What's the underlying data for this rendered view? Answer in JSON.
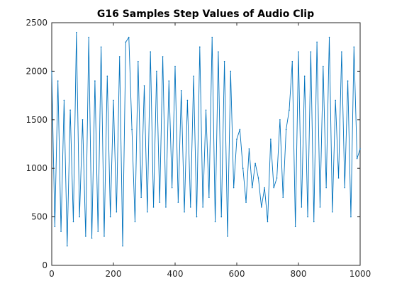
{
  "chart_data": {
    "type": "line",
    "title": "G16 Samples Step Values of Audio Clip",
    "xlabel": "",
    "ylabel": "",
    "xlim": [
      0,
      1000
    ],
    "ylim": [
      0,
      2500
    ],
    "x_ticks": [
      0,
      200,
      400,
      600,
      800,
      1000
    ],
    "y_ticks": [
      0,
      500,
      1000,
      1500,
      2000,
      2500
    ],
    "x_tick_labels": [
      "0",
      "200",
      "400",
      "600",
      "800",
      "1000"
    ],
    "y_tick_labels": [
      "0",
      "500",
      "1000",
      "1500",
      "2000",
      "2500"
    ],
    "grid": false,
    "legend": "none",
    "series": [
      {
        "color": "#0072BD",
        "x": [
          0,
          10,
          20,
          30,
          40,
          50,
          60,
          70,
          80,
          90,
          100,
          110,
          120,
          130,
          140,
          150,
          160,
          170,
          180,
          190,
          200,
          210,
          220,
          230,
          240,
          250,
          260,
          270,
          280,
          290,
          300,
          310,
          320,
          330,
          340,
          350,
          360,
          370,
          380,
          390,
          400,
          410,
          420,
          430,
          440,
          450,
          460,
          470,
          480,
          490,
          500,
          510,
          520,
          530,
          540,
          550,
          560,
          570,
          580,
          590,
          600,
          610,
          620,
          630,
          640,
          650,
          660,
          670,
          680,
          690,
          700,
          710,
          720,
          730,
          740,
          750,
          760,
          770,
          780,
          790,
          800,
          810,
          820,
          830,
          840,
          850,
          860,
          870,
          880,
          890,
          900,
          910,
          920,
          930,
          940,
          950,
          960,
          970,
          980,
          990,
          1000
        ],
        "y": [
          2000,
          400,
          1900,
          350,
          1700,
          200,
          1600,
          450,
          2400,
          500,
          1500,
          300,
          2350,
          280,
          1900,
          350,
          2250,
          300,
          1950,
          500,
          1700,
          550,
          2150,
          200,
          2300,
          2350,
          1400,
          450,
          2100,
          700,
          1850,
          550,
          2200,
          600,
          2000,
          650,
          2150,
          600,
          1900,
          800,
          2050,
          650,
          1800,
          550,
          1700,
          600,
          1950,
          500,
          2250,
          600,
          1600,
          700,
          2350,
          450,
          2200,
          500,
          2100,
          300,
          2000,
          800,
          1300,
          1400,
          1000,
          650,
          1200,
          800,
          1050,
          900,
          600,
          800,
          450,
          1300,
          800,
          900,
          1500,
          700,
          1400,
          1600,
          2100,
          400,
          2200,
          600,
          1950,
          500,
          2200,
          450,
          2300,
          600,
          2050,
          800,
          2350,
          550,
          1700,
          900,
          2200,
          800,
          1900,
          500,
          2250,
          1100,
          1200
        ]
      }
    ]
  }
}
